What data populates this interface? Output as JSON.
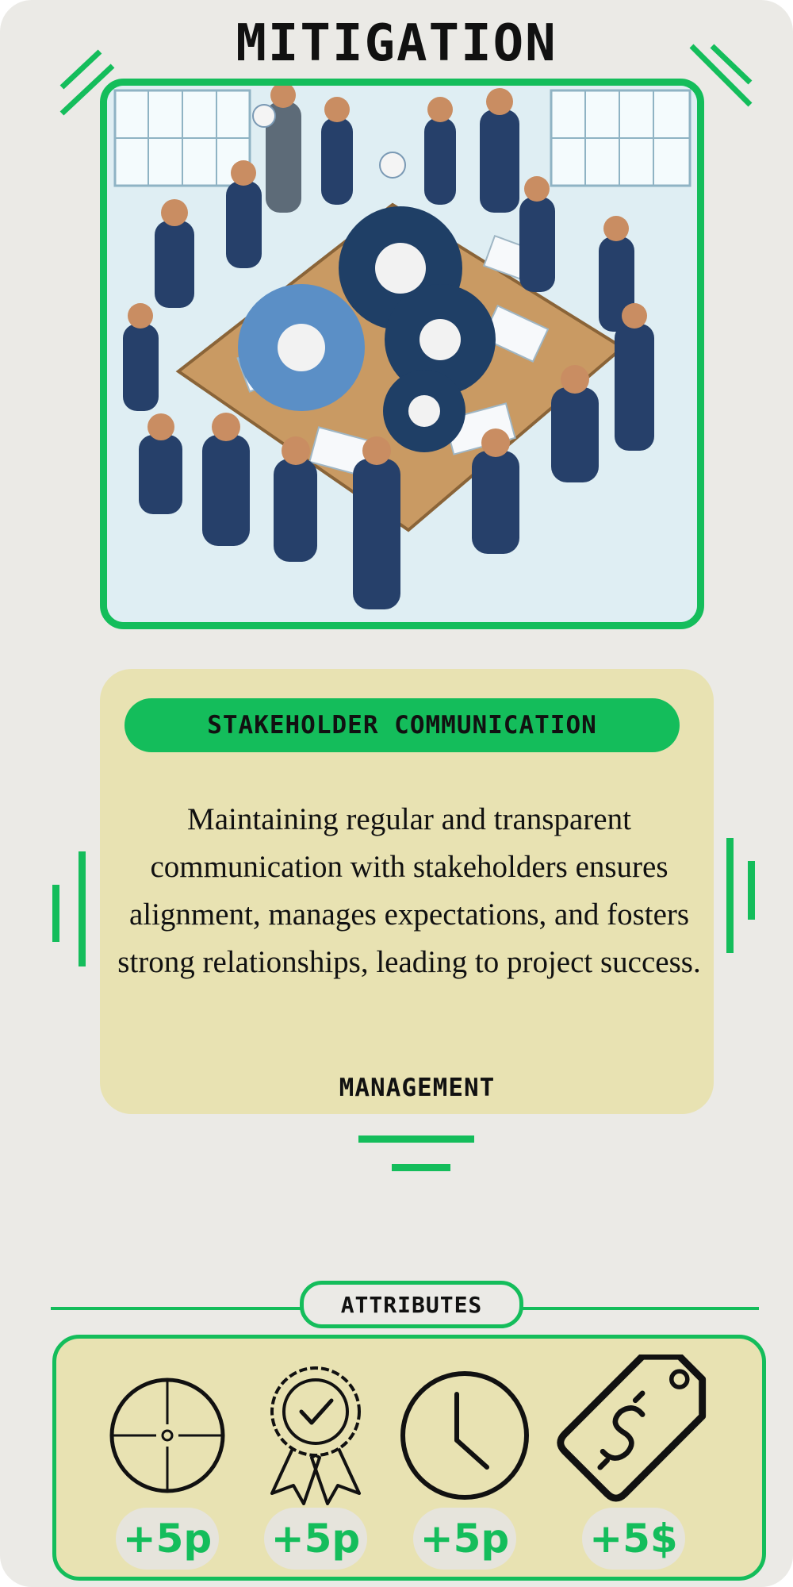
{
  "card": {
    "title": "MITIGATION",
    "name": "STAKEHOLDER COMMUNICATION",
    "description": "Maintaining regular and transparent communication with stakeholders ensures alignment, manages expectations, and fosters strong relationships, leading to project success.",
    "category": "MANAGEMENT"
  },
  "attributes": {
    "label": "ATTRIBUTES",
    "items": [
      {
        "icon": "crosshair-icon",
        "value": "+5p"
      },
      {
        "icon": "award-ribbon-icon",
        "value": "+5p"
      },
      {
        "icon": "clock-icon",
        "value": "+5p"
      },
      {
        "icon": "price-tag-dollar-icon",
        "value": "+5$"
      }
    ]
  },
  "colors": {
    "accent": "#14bd5b",
    "card_background": "#ebeae6",
    "panel_background": "#e8e2b2",
    "text": "#111111"
  }
}
